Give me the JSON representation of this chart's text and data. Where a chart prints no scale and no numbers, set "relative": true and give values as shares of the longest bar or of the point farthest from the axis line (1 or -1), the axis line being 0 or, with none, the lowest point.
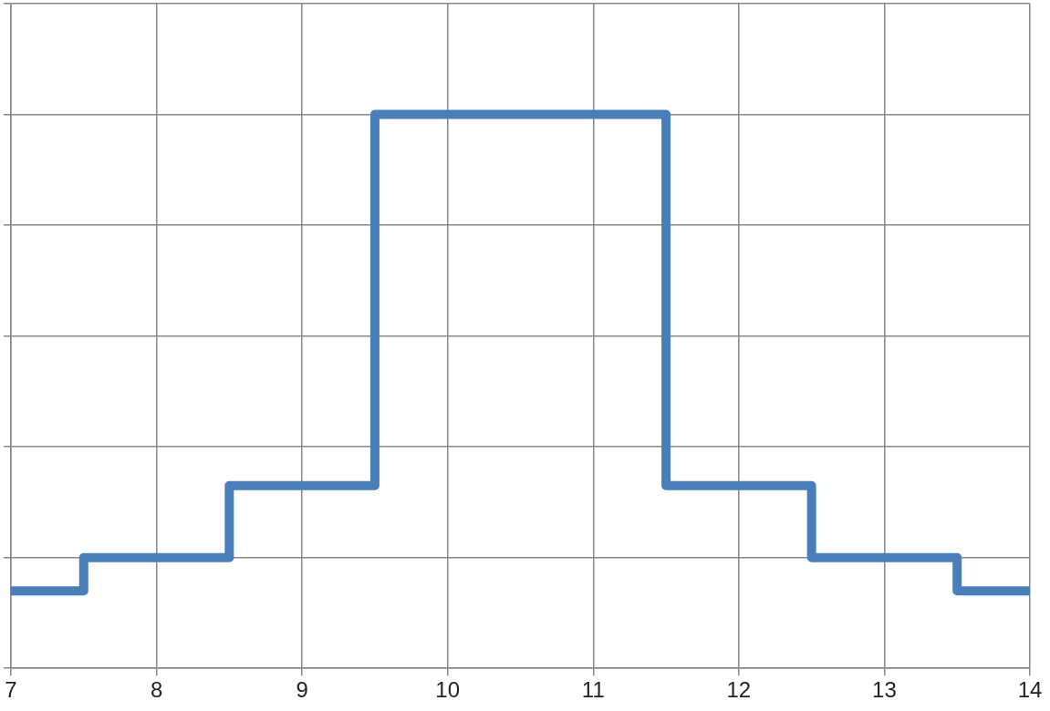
{
  "chart_data": {
    "type": "step",
    "relative": true,
    "x": [
      7,
      7.5,
      8.5,
      9.5,
      11.5,
      12.5,
      13.5,
      14
    ],
    "series": [
      {
        "color": "#4a7ebb",
        "values": [
          0.14,
          0.2,
          0.33,
          1,
          0.33,
          0.2,
          0.14,
          0.14
        ]
      }
    ],
    "xlim": [
      7,
      14
    ],
    "xticks": [
      7,
      8,
      9,
      10,
      11,
      12,
      13,
      14
    ],
    "grid": true,
    "legend": false,
    "tick_labels": "x",
    "marker": "none",
    "line_style": "solid"
  }
}
